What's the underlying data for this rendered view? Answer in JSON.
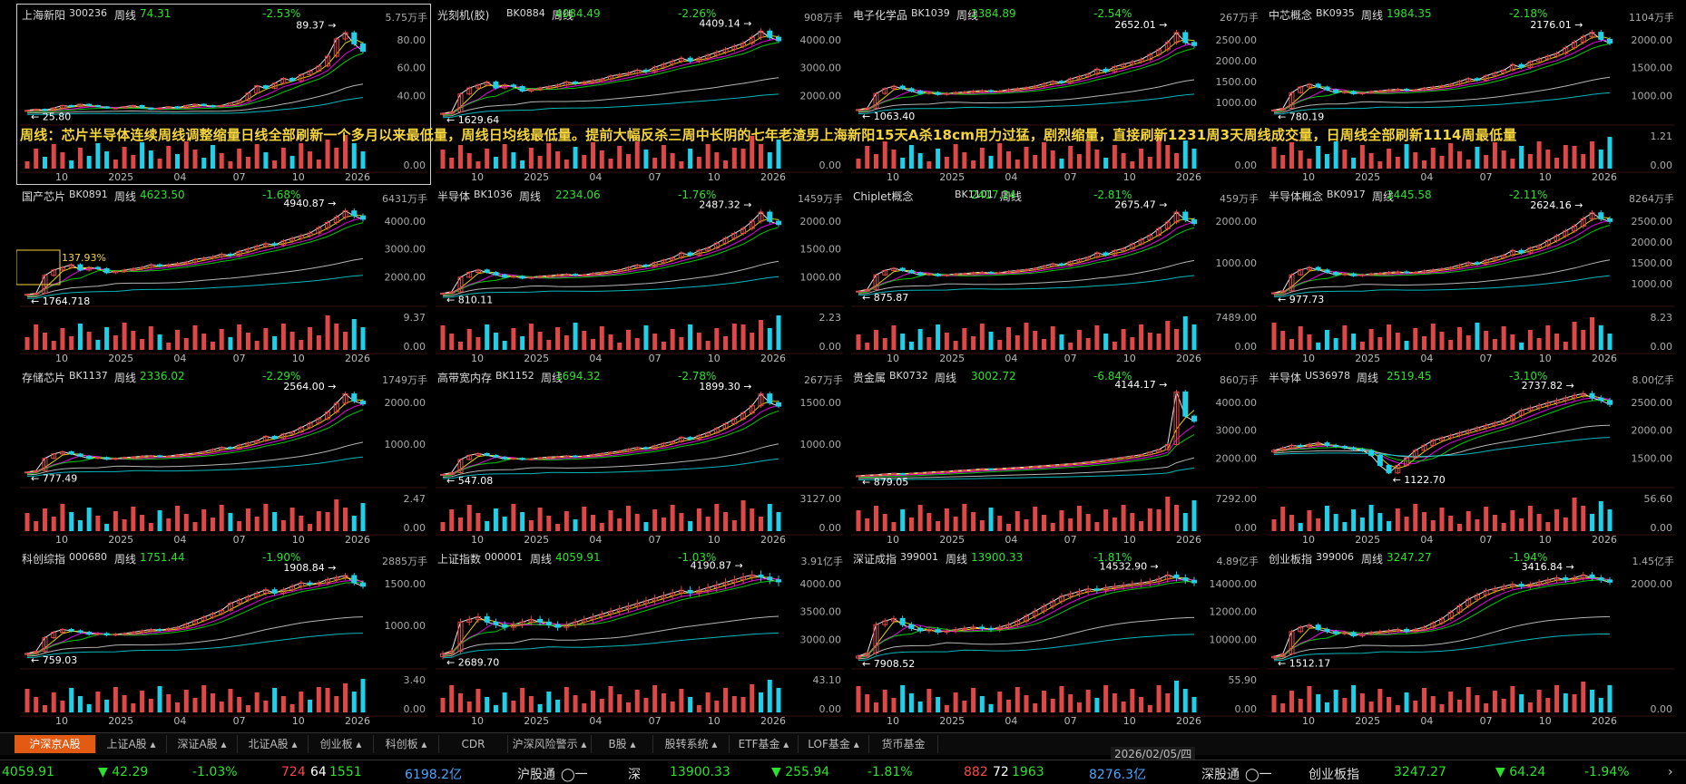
{
  "panels": [
    {
      "name": "上海新阳",
      "code": "300236",
      "period": "周线",
      "price": "74.31",
      "change": "-2.53%",
      "volume": "5.75万手",
      "high_label": "89.37",
      "low_label": "25.80",
      "yaxis": [
        "80.00",
        "60.00",
        "40.00"
      ],
      "vol_axis": [
        "",
        "0.00"
      ],
      "xticks": [
        "10",
        "2025",
        "04",
        "07",
        "10",
        "2026"
      ],
      "trend": [
        26,
        27,
        26,
        28,
        30,
        29,
        31,
        30,
        29,
        28,
        28,
        29,
        30,
        28,
        27,
        28,
        29,
        28,
        30,
        31,
        30,
        29,
        30,
        32,
        34,
        40,
        46,
        44,
        48,
        52,
        50,
        55,
        58,
        62,
        70,
        84,
        89,
        80,
        74
      ],
      "yrange": [
        20,
        95
      ],
      "selected": true
    },
    {
      "name": "光刻机(胶)",
      "code": "BK0884",
      "period": "周线",
      "price": "4084.49",
      "change": "-2.26%",
      "volume": "908万手",
      "high_label": "4409.14",
      "low_label": "1629.64",
      "yaxis": [
        "4000.00",
        "3000.00",
        "2000.00"
      ],
      "vol_axis": [
        "",
        "0.00"
      ],
      "xticks": [
        "10",
        "2025",
        "04",
        "07",
        "10",
        "2026"
      ],
      "trend": [
        1650,
        1700,
        2300,
        2500,
        2600,
        2700,
        2500,
        2600,
        2550,
        2400,
        2450,
        2500,
        2550,
        2600,
        2700,
        2650,
        2700,
        2750,
        2800,
        2900,
        2950,
        3000,
        3100,
        3050,
        3200,
        3300,
        3400,
        3500,
        3400,
        3500,
        3600,
        3700,
        3800,
        3900,
        4000,
        4200,
        4409,
        4200,
        4084
      ],
      "yrange": [
        1500,
        4600
      ]
    },
    {
      "name": "电子化学品",
      "code": "BK1039",
      "period": "周线",
      "price": "2384.89",
      "change": "-2.54%",
      "volume": "267万手",
      "high_label": "2652.01",
      "low_label": "1063.40",
      "yaxis": [
        "2500.00",
        "2000.00",
        "1500.00",
        "1000.00"
      ],
      "vol_axis": [
        "",
        "0.00"
      ],
      "xticks": [
        "10",
        "2025",
        "04",
        "07",
        "10",
        "2026"
      ],
      "trend": [
        1070,
        1100,
        1400,
        1500,
        1550,
        1500,
        1450,
        1400,
        1420,
        1380,
        1400,
        1420,
        1430,
        1450,
        1460,
        1440,
        1450,
        1480,
        1500,
        1520,
        1550,
        1600,
        1650,
        1620,
        1700,
        1750,
        1800,
        1900,
        1850,
        1950,
        2000,
        2050,
        2100,
        2200,
        2300,
        2450,
        2652,
        2450,
        2385
      ],
      "yrange": [
        900,
        2800
      ]
    },
    {
      "name": "中芯概念",
      "code": "BK0935",
      "period": "周线",
      "price": "1984.35",
      "change": "-2.18%",
      "volume": "1104万手",
      "high_label": "2176.01",
      "low_label": "780.19",
      "yaxis": [
        "2000.00",
        "1500.00",
        "1000.00"
      ],
      "vol_axis": [
        "1.21",
        "0.00"
      ],
      "xticks": [
        "10",
        "2025",
        "04",
        "07",
        "10",
        "2026"
      ],
      "trend": [
        790,
        820,
        1100,
        1200,
        1250,
        1200,
        1150,
        1100,
        1120,
        1080,
        1100,
        1120,
        1130,
        1150,
        1160,
        1140,
        1150,
        1180,
        1200,
        1220,
        1250,
        1300,
        1350,
        1320,
        1400,
        1450,
        1500,
        1600,
        1550,
        1650,
        1700,
        1750,
        1800,
        1900,
        2000,
        2100,
        2176,
        2050,
        1984
      ],
      "yrange": [
        650,
        2300
      ]
    },
    {
      "name": "国产芯片",
      "code": "BK0891",
      "period": "周线",
      "price": "4623.50",
      "change": "-1.68%",
      "volume": "6431万手",
      "high_label": "4940.87",
      "low_label": "1764.718",
      "box_label": "137.93%",
      "yaxis": [
        "4000.00",
        "3000.00",
        "2000.00"
      ],
      "vol_axis": [
        "9.37",
        "0.00"
      ],
      "xticks": [
        "10",
        "2025",
        "04",
        "07",
        "10",
        "2026"
      ],
      "trend": [
        1780,
        1820,
        2500,
        2700,
        2800,
        2900,
        2700,
        2800,
        2750,
        2600,
        2650,
        2700,
        2750,
        2800,
        2900,
        2850,
        2900,
        2950,
        3000,
        3100,
        3150,
        3200,
        3300,
        3250,
        3400,
        3500,
        3600,
        3700,
        3650,
        3800,
        3900,
        4000,
        4100,
        4300,
        4500,
        4700,
        4940,
        4750,
        4623
      ],
      "yrange": [
        1600,
        5100
      ]
    },
    {
      "name": "半导体",
      "code": "BK1036",
      "period": "周线",
      "price": "2234.06",
      "change": "-1.76%",
      "volume": "1459万手",
      "high_label": "2487.32",
      "low_label": "810.11",
      "yaxis": [
        "2000.00",
        "1500.00",
        "1000.00"
      ],
      "vol_axis": [
        "2.23",
        "0.00"
      ],
      "xticks": [
        "10",
        "2025",
        "04",
        "07",
        "10",
        "2026"
      ],
      "trend": [
        820,
        850,
        1150,
        1250,
        1300,
        1250,
        1200,
        1150,
        1170,
        1130,
        1150,
        1170,
        1180,
        1200,
        1210,
        1190,
        1200,
        1230,
        1250,
        1270,
        1300,
        1350,
        1400,
        1370,
        1450,
        1500,
        1550,
        1650,
        1600,
        1700,
        1750,
        1850,
        1950,
        2050,
        2150,
        2300,
        2487,
        2300,
        2234
      ],
      "yrange": [
        700,
        2600
      ]
    },
    {
      "name": "Chiplet概念",
      "code": "BK1101",
      "period": "周线",
      "price": "2417.24",
      "change": "-2.81%",
      "volume": "459万手",
      "high_label": "2675.47",
      "low_label": "875.87",
      "yaxis": [
        "2000.00",
        "1000.00"
      ],
      "vol_axis": [
        "7489.00",
        "0.00"
      ],
      "xticks": [
        "10",
        "2025",
        "04",
        "07",
        "10",
        "2026"
      ],
      "trend": [
        880,
        920,
        1250,
        1350,
        1400,
        1350,
        1300,
        1250,
        1270,
        1230,
        1250,
        1270,
        1280,
        1300,
        1310,
        1290,
        1300,
        1330,
        1350,
        1370,
        1400,
        1450,
        1500,
        1470,
        1550,
        1600,
        1650,
        1750,
        1700,
        1800,
        1850,
        1950,
        2050,
        2150,
        2300,
        2450,
        2675,
        2500,
        2417
      ],
      "yrange": [
        700,
        2800
      ]
    },
    {
      "name": "半导体概念",
      "code": "BK0917",
      "period": "周线",
      "price": "2445.58",
      "change": "-2.11%",
      "volume": "8264万手",
      "high_label": "2624.16",
      "low_label": "977.73",
      "yaxis": [
        "2500.00",
        "2000.00",
        "1500.00",
        "1000.00"
      ],
      "vol_axis": [
        "8.23",
        "0.00"
      ],
      "xticks": [
        "10",
        "2025",
        "04",
        "07",
        "10",
        "2026"
      ],
      "trend": [
        980,
        1020,
        1350,
        1450,
        1500,
        1450,
        1400,
        1350,
        1370,
        1330,
        1350,
        1370,
        1380,
        1400,
        1410,
        1390,
        1400,
        1430,
        1450,
        1470,
        1500,
        1550,
        1600,
        1570,
        1650,
        1700,
        1750,
        1850,
        1800,
        1900,
        1950,
        2050,
        2150,
        2250,
        2350,
        2500,
        2624,
        2500,
        2446
      ],
      "yrange": [
        850,
        2750
      ]
    },
    {
      "name": "存储芯片",
      "code": "BK1137",
      "period": "周线",
      "price": "2336.02",
      "change": "-2.29%",
      "volume": "1749万手",
      "high_label": "2564.00",
      "low_label": "777.49",
      "yaxis": [
        "2000.00",
        "1000.00"
      ],
      "vol_axis": [
        "2.47",
        "0.00"
      ],
      "xticks": [
        "10",
        "2025",
        "04",
        "07",
        "10",
        "2026"
      ],
      "trend": [
        790,
        820,
        1100,
        1200,
        1250,
        1200,
        1150,
        1100,
        1120,
        1080,
        1100,
        1120,
        1130,
        1150,
        1160,
        1140,
        1150,
        1180,
        1200,
        1220,
        1250,
        1300,
        1350,
        1320,
        1400,
        1450,
        1500,
        1600,
        1550,
        1650,
        1700,
        1800,
        1900,
        2000,
        2150,
        2350,
        2564,
        2400,
        2336
      ],
      "yrange": [
        600,
        2700
      ]
    },
    {
      "name": "高带宽内存",
      "code": "BK1152",
      "period": "周线",
      "price": "1694.32",
      "change": "-2.78%",
      "volume": "267万手",
      "high_label": "1899.30",
      "low_label": "547.08",
      "yaxis": [
        "1500.00",
        "1000.00"
      ],
      "vol_axis": [
        "3127.00",
        "0.00"
      ],
      "xticks": [
        "10",
        "2025",
        "04",
        "07",
        "10",
        "2026"
      ],
      "trend": [
        550,
        580,
        800,
        870,
        900,
        870,
        840,
        810,
        820,
        800,
        810,
        830,
        840,
        850,
        860,
        850,
        860,
        880,
        900,
        920,
        940,
        970,
        1000,
        980,
        1030,
        1070,
        1100,
        1170,
        1140,
        1200,
        1250,
        1320,
        1400,
        1480,
        1580,
        1700,
        1899,
        1750,
        1694
      ],
      "yrange": [
        450,
        2000
      ]
    },
    {
      "name": "贵金属",
      "code": "BK0732",
      "period": "周线",
      "price": "3002.72",
      "change": "-6.84%",
      "volume": "860万手",
      "high_label": "4144.17",
      "low_label": "879.05",
      "yaxis": [
        "4000.00",
        "3000.00",
        "2000.00"
      ],
      "vol_axis": [
        "7292.00",
        "0.00"
      ],
      "xticks": [
        "10",
        "2025",
        "04",
        "07",
        "10",
        "2026"
      ],
      "trend": [
        880,
        900,
        920,
        950,
        970,
        960,
        980,
        1000,
        1020,
        1040,
        1050,
        1080,
        1100,
        1120,
        1150,
        1140,
        1160,
        1180,
        1200,
        1220,
        1250,
        1270,
        1300,
        1320,
        1350,
        1380,
        1420,
        1460,
        1500,
        1550,
        1600,
        1650,
        1700,
        1800,
        1900,
        2100,
        4144,
        3200,
        3003
      ],
      "yrange": [
        700,
        4300
      ]
    },
    {
      "name": "半导体",
      "code": "US36978",
      "period": "周线",
      "price": "2519.45",
      "change": "-3.10%",
      "volume": "8.00亿手",
      "high_label": "2737.82",
      "low_label": "1122.70",
      "yaxis": [
        "2500.00",
        "2000.00",
        "1500.00"
      ],
      "vol_axis": [
        "56.60",
        "0.00"
      ],
      "xticks": [
        "10",
        "2025",
        "04",
        "07",
        "10",
        "2026"
      ],
      "trend": [
        1600,
        1650,
        1700,
        1680,
        1720,
        1750,
        1700,
        1680,
        1650,
        1620,
        1600,
        1500,
        1300,
        1150,
        1300,
        1450,
        1600,
        1700,
        1800,
        1850,
        1900,
        1950,
        2000,
        2050,
        2100,
        2150,
        2200,
        2300,
        2400,
        2450,
        2500,
        2550,
        2600,
        2650,
        2700,
        2737,
        2650,
        2600,
        2519
      ],
      "yrange": [
        1000,
        2850
      ]
    },
    {
      "name": "科创综指",
      "code": "000680",
      "period": "周线",
      "price": "1751.44",
      "change": "-1.90%",
      "volume": "2885万手",
      "high_label": "1908.84",
      "low_label": "759.03",
      "yaxis": [
        "1500.00",
        "1000.00"
      ],
      "vol_axis": [
        "3.40",
        "0.00"
      ],
      "xticks": [
        "10",
        "2025",
        "04",
        "07",
        "10",
        "2026"
      ],
      "trend": [
        770,
        800,
        1000,
        1080,
        1120,
        1100,
        1080,
        1050,
        1060,
        1040,
        1050,
        1060,
        1080,
        1100,
        1120,
        1110,
        1130,
        1150,
        1200,
        1250,
        1300,
        1350,
        1400,
        1500,
        1550,
        1600,
        1650,
        1700,
        1650,
        1700,
        1750,
        1800,
        1780,
        1800,
        1850,
        1880,
        1908,
        1800,
        1751
      ],
      "yrange": [
        650,
        2000
      ]
    },
    {
      "name": "上证指数",
      "code": "000001",
      "period": "周线",
      "price": "4059.91",
      "change": "-1.03%",
      "volume": "3.91亿手",
      "high_label": "4190.87",
      "low_label": "2689.70",
      "yaxis": [
        "4000.00",
        "3500.00",
        "3000.00"
      ],
      "vol_axis": [
        "43.10",
        "0.00"
      ],
      "xticks": [
        "10",
        "2025",
        "04",
        "07",
        "10",
        "2026"
      ],
      "trend": [
        2700,
        2750,
        3300,
        3350,
        3400,
        3300,
        3250,
        3200,
        3250,
        3300,
        3350,
        3300,
        3250,
        3200,
        3250,
        3300,
        3350,
        3400,
        3450,
        3500,
        3550,
        3600,
        3650,
        3700,
        3750,
        3800,
        3850,
        3900,
        3850,
        3900,
        3950,
        4000,
        4050,
        4100,
        4150,
        4190,
        4150,
        4100,
        4060
      ],
      "yrange": [
        2550,
        4300
      ]
    },
    {
      "name": "深证成指",
      "code": "399001",
      "period": "周线",
      "price": "13900.33",
      "change": "-1.81%",
      "volume": "4.89亿手",
      "high_label": "14532.90",
      "low_label": "7908.52",
      "yaxis": [
        "14000.00",
        "12000.00",
        "10000.00"
      ],
      "vol_axis": [
        "55.90",
        "0.00"
      ],
      "xticks": [
        "10",
        "2025",
        "04",
        "07",
        "10",
        "2026"
      ],
      "trend": [
        7950,
        8200,
        10500,
        10800,
        11000,
        10500,
        10200,
        10000,
        10100,
        9900,
        10000,
        10100,
        10200,
        10300,
        10200,
        10100,
        10300,
        10500,
        10800,
        11200,
        11600,
        12000,
        12400,
        12800,
        13000,
        13200,
        13400,
        13300,
        13500,
        13600,
        13700,
        13800,
        13900,
        14000,
        14200,
        14532,
        14300,
        14100,
        13900
      ],
      "yrange": [
        7500,
        15000
      ]
    },
    {
      "name": "创业板指",
      "code": "399006",
      "period": "周线",
      "price": "3247.27",
      "change": "-1.94%",
      "volume": "1.45亿手",
      "high_label": "3416.84",
      "low_label": "1512.17",
      "yaxis": [
        "2000.00"
      ],
      "vol_axis": [
        "",
        "0.00"
      ],
      "xticks": [
        "10",
        "2025",
        "04",
        "07",
        "10",
        "2026"
      ],
      "trend": [
        1520,
        1580,
        2100,
        2200,
        2250,
        2150,
        2100,
        2050,
        2080,
        2000,
        2050,
        2080,
        2100,
        2120,
        2150,
        2100,
        2150,
        2200,
        2300,
        2400,
        2550,
        2700,
        2850,
        2950,
        3050,
        3100,
        3150,
        3200,
        3150,
        3200,
        3250,
        3300,
        3350,
        3300,
        3350,
        3416,
        3350,
        3300,
        3247
      ],
      "yrange": [
        1400,
        3550
      ]
    }
  ],
  "note": "周线：芯片半导体连续周线调整缩量日线全部刷新一个多月以来最低量，周线日均线最低量。提前大幅反杀三周中长阴的七年老渣男上海新阳15天A杀18cm用力过猛，剧烈缩量，直接刷新1231周3天周线成交量，日周线全部刷新1114周最低量",
  "tabs": [
    "沪深京A股",
    "上证A股",
    "深证A股",
    "北证A股",
    "创业板",
    "科创板",
    "CDR",
    "沪深风险警示",
    "B股",
    "股转系统",
    "ETF基金",
    "LOF基金",
    "货币基金"
  ],
  "tab_has_arrow": [
    false,
    true,
    true,
    true,
    true,
    true,
    false,
    true,
    true,
    true,
    true,
    true,
    false
  ],
  "date_label": "2026/02/05/四",
  "status": {
    "sh_price": "4059.91",
    "sh_change": "▼ 42.29",
    "sh_pct": "-1.03%",
    "sh_up": "724",
    "sh_flat": "64",
    "sh_down": "1551",
    "sh_amount": "6198.2亿",
    "hgt": "沪股通",
    "hgt_flag": "◯一",
    "sz_label": "深",
    "sz_price": "13900.33",
    "sz_change": "▼ 255.94",
    "sz_pct": "-1.81%",
    "sz_up": "882",
    "sz_flat": "72",
    "sz_down": "1963",
    "sz_amount": "8276.3亿",
    "sgt": "深股通",
    "sgt_flag": "◯一",
    "cyb_label": "创业板指",
    "cyb_price": "3247.27",
    "cyb_change": "▼ 64.24",
    "cyb_pct": "-1.94%"
  },
  "colors": {
    "up": "#ff4545",
    "down": "#2ee02e",
    "bar_up": "#e04848",
    "bar_down": "#20d0e8",
    "ma": [
      "#ffffff",
      "#ffea00",
      "#ff00ff",
      "#00e000",
      "#c8c8c8",
      "#00cccc"
    ]
  }
}
